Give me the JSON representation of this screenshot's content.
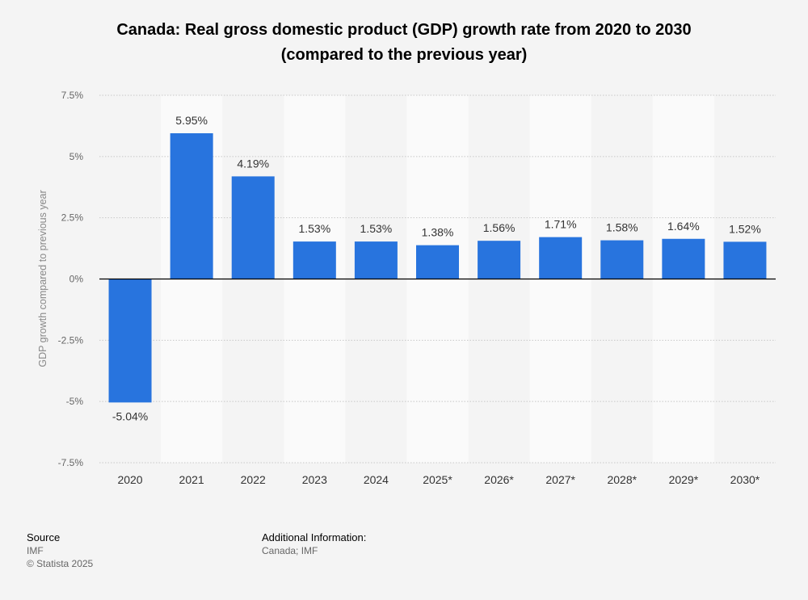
{
  "title_line1": "Canada: Real gross domestic product (GDP) growth rate from 2020 to 2030",
  "title_line2": "(compared to the previous year)",
  "colors": {
    "bar": "#2874de",
    "band": "#fafafa",
    "grid": "#c8c8c8",
    "zero": "#000000",
    "tick": "#666666",
    "label": "#333333"
  },
  "chart_data": {
    "type": "bar",
    "title": "Canada: Real gross domestic product (GDP) growth rate from 2020 to 2030 (compared to the previous year)",
    "xlabel": "",
    "ylabel": "GDP growth compared to previous year",
    "categories": [
      "2020",
      "2021",
      "2022",
      "2023",
      "2024",
      "2025*",
      "2026*",
      "2027*",
      "2028*",
      "2029*",
      "2030*"
    ],
    "values": [
      -5.04,
      5.95,
      4.19,
      1.53,
      1.53,
      1.38,
      1.56,
      1.71,
      1.58,
      1.64,
      1.52
    ],
    "value_labels": [
      "-5.04%",
      "5.95%",
      "4.19%",
      "1.53%",
      "1.53%",
      "1.38%",
      "1.56%",
      "1.71%",
      "1.58%",
      "1.64%",
      "1.52%"
    ],
    "yticks": [
      7.5,
      5,
      2.5,
      0,
      -2.5,
      -5,
      -7.5
    ],
    "ytick_labels": [
      "7.5%",
      "5%",
      "2.5%",
      "0%",
      "-2.5%",
      "-5%",
      "-7.5%"
    ],
    "ylim": [
      -7.5,
      7.5
    ],
    "grid": true,
    "legend": "none"
  },
  "footer": {
    "source_heading": "Source",
    "source_name": "IMF",
    "copyright": "© Statista 2025",
    "info_heading": "Additional Information:",
    "info_text": "Canada; IMF"
  }
}
